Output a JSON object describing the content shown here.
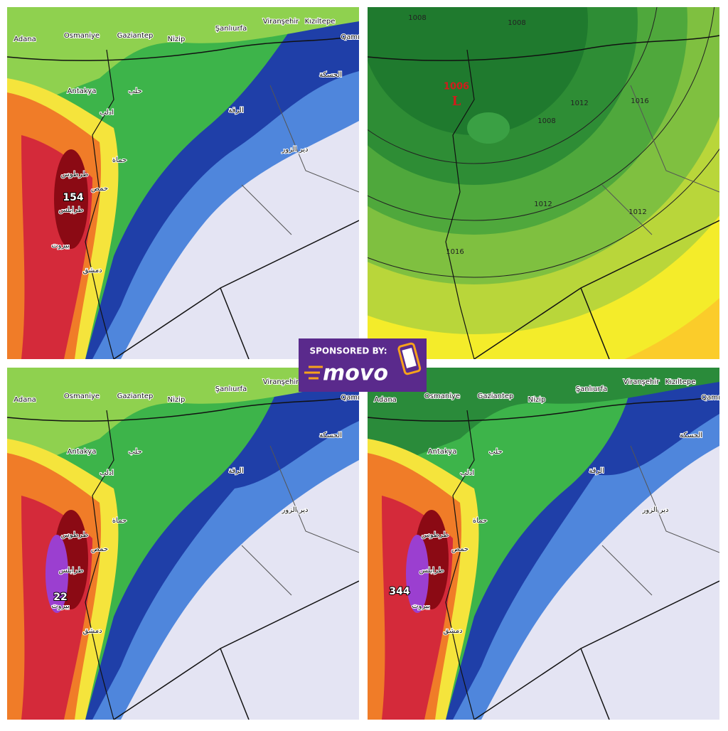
{
  "rain_panels": [
    {
      "labels": [
        "Adana",
        "Osmaniye",
        "Gaziantep",
        "Nizip",
        "Şanlıurfa",
        "Viranşehir",
        "Kızıltepe",
        "Qamışlı",
        "Antakya",
        "حلب",
        "ادلب",
        "الرقة",
        "الحسكة",
        "دير الزور",
        "حماة",
        "حمص",
        "طرطوس",
        "طرابلس",
        "بيروت",
        "دمشق"
      ],
      "max_value": 154
    },
    {
      "labels": [
        "Adana",
        "Osmaniye",
        "Gaziantep",
        "Nizip",
        "Şanlıurfa",
        "Viranşehir",
        "Kızıltepe",
        "Qamışlı",
        "Antakya",
        "حلب",
        "ادلب",
        "الرقة",
        "الحسكة",
        "دير الزور",
        "حماة",
        "حمص",
        "طرطوس",
        "طرابلس",
        "بيروت",
        "دمشق"
      ],
      "max_value": 22
    },
    {
      "labels": [
        "Adana",
        "Osmaniye",
        "Gaziantep",
        "Nizip",
        "Şanlıurfa",
        "Viranşehir",
        "Kızıltepe",
        "Qamışlı",
        "Antakya",
        "حلب",
        "ادلب",
        "الرقة",
        "الحسكة",
        "دير الزور",
        "حماة",
        "حمص",
        "طرطوس",
        "طرابلس",
        "بيروت",
        "دمشق"
      ],
      "max_value": 344
    }
  ],
  "pressure_panel": {
    "low_value": "1006",
    "low_symbol": "L",
    "isobars": [
      "1008",
      "1008",
      "1008",
      "1012",
      "1012",
      "1012",
      "1016",
      "1016"
    ]
  },
  "sponsor": {
    "caption": "SPONSORED BY:",
    "brand": "movo"
  }
}
